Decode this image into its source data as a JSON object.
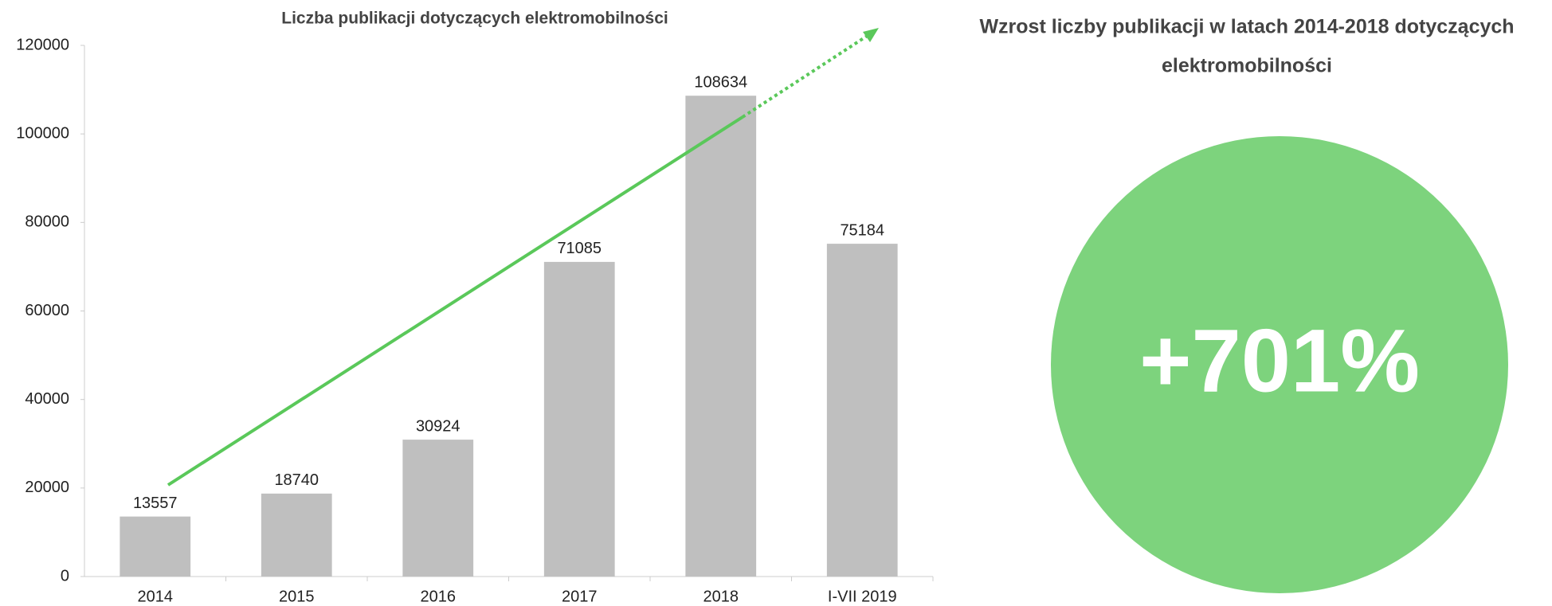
{
  "chart_data": {
    "type": "bar",
    "title": "Liczba publikacji dotyczących elektromobilności",
    "categories": [
      "2014",
      "2015",
      "2016",
      "2017",
      "2018",
      "I-VII 2019"
    ],
    "values": [
      13557,
      18740,
      30924,
      71085,
      108634,
      75184
    ],
    "color": "#bfbfbf",
    "ylim": [
      0,
      120000
    ],
    "yticks": [
      0,
      20000,
      40000,
      60000,
      80000,
      100000,
      120000
    ]
  },
  "panel": {
    "title_lines": [
      "Wzrost liczby publikacji w latach 2014-2018 dotyczących",
      "elektromobilności"
    ],
    "value": "+701%",
    "color": "#7dd37d"
  }
}
